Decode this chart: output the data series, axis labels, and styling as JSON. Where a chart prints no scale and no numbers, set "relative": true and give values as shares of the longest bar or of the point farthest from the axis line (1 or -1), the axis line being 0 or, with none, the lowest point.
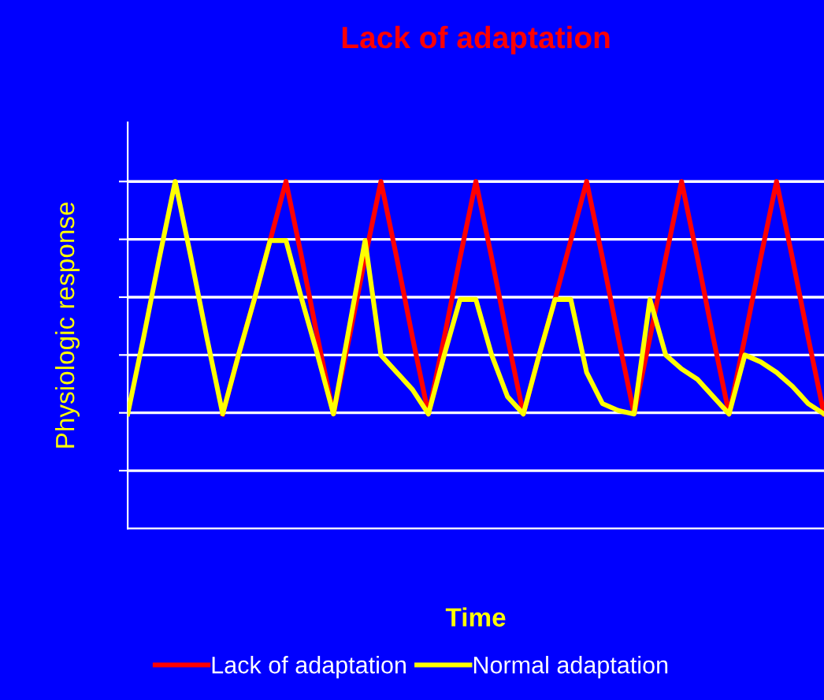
{
  "chart_data": {
    "type": "line",
    "title": "Lack of adaptation",
    "xlabel": "Time",
    "ylabel": "Physiologic response",
    "relative": true,
    "grid": "y",
    "legend": "bottom",
    "tick_labels": false,
    "categories": [
      null,
      null,
      null,
      null,
      null,
      null,
      null,
      null,
      null,
      null,
      null,
      null,
      null,
      null,
      null,
      null,
      null,
      null,
      null,
      null,
      null,
      null,
      null,
      null,
      null,
      null,
      null,
      null,
      null,
      null,
      null,
      null,
      null,
      null,
      null,
      null,
      null,
      null,
      null,
      null,
      null,
      null,
      null,
      null,
      null
    ],
    "series": [
      {
        "name": "Lack of adaptation",
        "color": "#ff0000",
        "values": [
          null,
          null,
          null,
          null,
          null,
          null,
          0.33,
          0.5,
          0.66,
          0.83,
          1,
          0.78,
          0.55,
          0.33,
          0.55,
          0.78,
          1,
          0.78,
          0.55,
          0.33,
          0.55,
          0.78,
          1,
          0.78,
          0.55,
          0.33,
          0.5,
          0.66,
          0.83,
          1,
          0.78,
          0.55,
          0.33,
          0.55,
          0.78,
          1,
          0.78,
          0.55,
          0.33,
          0.55,
          0.78,
          1,
          0.78,
          0.55,
          0.33
        ]
      },
      {
        "name": "Normal adaptation",
        "color": "#ffff00",
        "values": [
          0.33,
          0.55,
          0.78,
          1,
          0.78,
          0.55,
          0.33,
          0.5,
          0.66,
          0.83,
          0.83,
          0.66,
          0.5,
          0.33,
          0.58,
          0.83,
          0.5,
          0.45,
          0.4,
          0.33,
          0.5,
          0.66,
          0.66,
          0.5,
          0.38,
          0.33,
          0.5,
          0.66,
          0.66,
          0.45,
          0.36,
          0.34,
          0.33,
          0.66,
          0.5,
          0.46,
          0.43,
          0.38,
          0.33,
          0.5,
          0.48,
          0.45,
          0.41,
          0.36,
          0.33
        ]
      }
    ]
  }
}
